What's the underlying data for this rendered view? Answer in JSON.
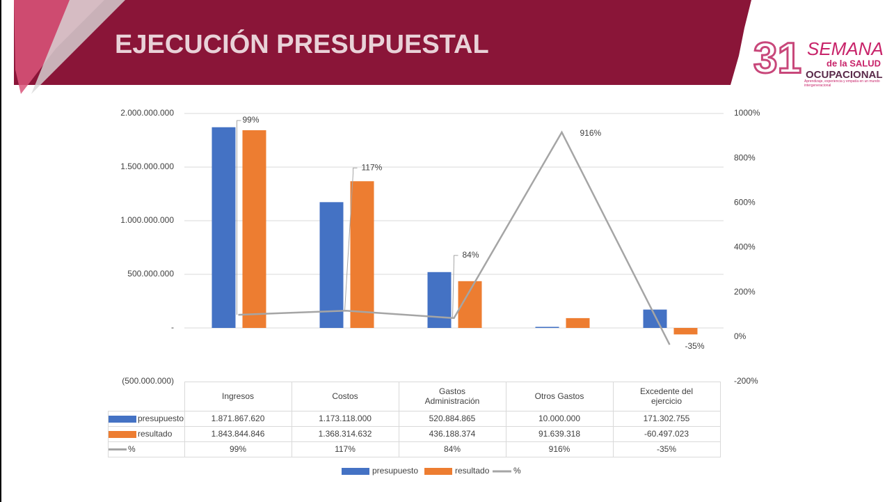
{
  "header": {
    "title": "EJECUCIÓN PRESUPUESTAL",
    "logo": {
      "number": "31",
      "line1": "SEMANA",
      "line2": "de la SALUD",
      "line3": "OCUPACIONAL",
      "tagline": "Aprendizaje, experiencia y empatía en un mundo intergeneracional"
    }
  },
  "chart_data": {
    "type": "bar-line",
    "categories": [
      "Ingresos",
      "Costos",
      "Gastos Administración",
      "Otros Gastos",
      "Excedente del ejercicio"
    ],
    "series": [
      {
        "name": "presupuesto",
        "type": "bar",
        "color": "#4472c4",
        "values": [
          1871867620,
          1173118000,
          520884865,
          10000000,
          171302755
        ],
        "value_labels": [
          "1.871.867.620",
          "1.173.118.000",
          "520.884.865",
          "10.000.000",
          "171.302.755"
        ]
      },
      {
        "name": "resultado",
        "type": "bar",
        "color": "#ed7d31",
        "values": [
          1843844846,
          1368314632,
          436188374,
          91639318,
          -60497023
        ],
        "value_labels": [
          "1.843.844.846",
          "1.368.314.632",
          "436.188.374",
          "91.639.318",
          "-60.497.023"
        ]
      },
      {
        "name": "%",
        "type": "line",
        "axis": "y2",
        "color": "#a5a5a5",
        "values": [
          99,
          117,
          84,
          916,
          -35
        ],
        "value_labels": [
          "99%",
          "117%",
          "84%",
          "916%",
          "-35%"
        ]
      }
    ],
    "ylim": [
      -500000000,
      2000000000
    ],
    "yticks": [
      {
        "value": -500000000,
        "label": "(500.000.000)"
      },
      {
        "value": 0,
        "label": "-"
      },
      {
        "value": 500000000,
        "label": "500.000.000"
      },
      {
        "value": 1000000000,
        "label": "1.000.000.000"
      },
      {
        "value": 1500000000,
        "label": "1.500.000.000"
      },
      {
        "value": 2000000000,
        "label": "2.000.000.000"
      }
    ],
    "y2lim": [
      -200,
      1000
    ],
    "y2ticks": [
      {
        "value": -200,
        "label": "-200%"
      },
      {
        "value": 0,
        "label": "0%"
      },
      {
        "value": 200,
        "label": "200%"
      },
      {
        "value": 400,
        "label": "400%"
      },
      {
        "value": 600,
        "label": "600%"
      },
      {
        "value": 800,
        "label": "800%"
      },
      {
        "value": 1000,
        "label": "1000%"
      }
    ],
    "grid": true,
    "legend": "bottom"
  }
}
